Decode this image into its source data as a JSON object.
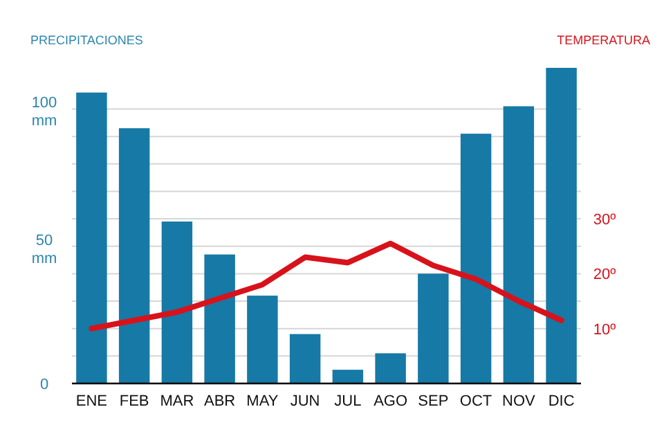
{
  "chart_data": {
    "type": "bar",
    "ylabel": "PRECIPITACIONES",
    "y2label": "TEMPERATURA",
    "categories": [
      "ENE",
      "FEB",
      "MAR",
      "ABR",
      "MAY",
      "JUN",
      "JUL",
      "AGO",
      "SEP",
      "OCT",
      "NOV",
      "DIC"
    ],
    "series": [
      {
        "color": "#1679a6",
        "values": [
          106,
          93,
          59,
          47,
          32,
          18,
          5,
          11,
          40,
          91,
          101,
          115
        ]
      },
      {
        "type": "line",
        "axis": "y2",
        "color": "#d8121b",
        "values": [
          10,
          11.5,
          13,
          15.5,
          18,
          23,
          22,
          25.5,
          21.5,
          19,
          15,
          11.5
        ]
      }
    ],
    "yticks": [
      0,
      {
        "value": 10,
        "label": null
      },
      {
        "value": 20,
        "label": null
      },
      {
        "value": 30,
        "label": null
      },
      {
        "value": 40,
        "label": null
      },
      {
        "value": 50,
        "label": "50 mm"
      },
      {
        "value": 60,
        "label": null
      },
      {
        "value": 70,
        "label": null
      },
      {
        "value": 80,
        "label": null
      },
      {
        "value": 90,
        "label": null
      },
      {
        "value": 100,
        "label": "100 mm"
      }
    ],
    "ylim": [
      0,
      115
    ],
    "y2lim": [
      0,
      30
    ],
    "y2ticks": [
      {
        "value": 10,
        "label": "10º"
      },
      {
        "value": 20,
        "label": "20º"
      },
      {
        "value": 30,
        "label": "30º"
      }
    ],
    "grid": "y"
  }
}
